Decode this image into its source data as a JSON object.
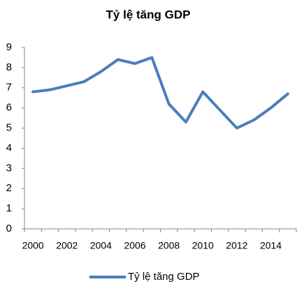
{
  "chart_data": {
    "type": "line",
    "title": "Tỷ lệ tăng GDP",
    "categories": [
      "2000",
      null,
      "2002",
      null,
      "2004",
      null,
      "2006",
      null,
      "2008",
      null,
      "2010",
      null,
      "2012",
      null,
      "2014",
      null
    ],
    "series": [
      {
        "name": "Tỷ lệ tăng GDP",
        "color": "#4a7ebb",
        "values": [
          6.8,
          6.9,
          7.1,
          7.3,
          7.8,
          8.4,
          8.2,
          8.5,
          6.2,
          5.3,
          6.8,
          5.9,
          5.0,
          5.4,
          6.0,
          6.7
        ]
      }
    ],
    "ylim": [
      0,
      9
    ],
    "yticks": [
      0,
      1,
      2,
      3,
      4,
      5,
      6,
      7,
      8,
      9
    ],
    "grid": false,
    "legend": "bottom"
  }
}
